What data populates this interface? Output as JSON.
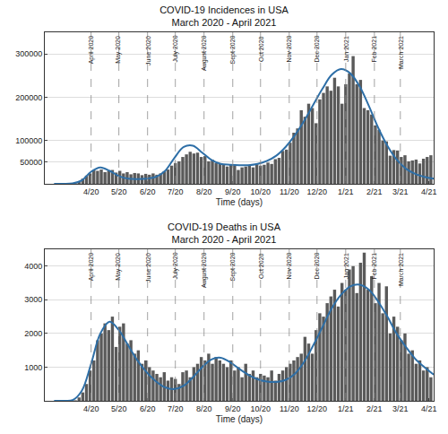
{
  "chart_data": [
    {
      "type": "bar",
      "title": "COVID-19 Incidences in USA",
      "subtitle": "March 2020 - April 2021",
      "x_label": "Time (days)",
      "xlim": [
        20,
        440
      ],
      "xticks": [
        {
          "value": 70,
          "label": "4/20"
        },
        {
          "value": 100,
          "label": "5/20"
        },
        {
          "value": 131,
          "label": "6/20"
        },
        {
          "value": 161,
          "label": "7/20"
        },
        {
          "value": 192,
          "label": "8/20"
        },
        {
          "value": 223,
          "label": "9/20"
        },
        {
          "value": 253,
          "label": "10/20"
        },
        {
          "value": 284,
          "label": "11/20"
        },
        {
          "value": 314,
          "label": "12/20"
        },
        {
          "value": 345,
          "label": "1/21"
        },
        {
          "value": 376,
          "label": "2/21"
        },
        {
          "value": 404,
          "label": "3/21"
        },
        {
          "value": 435,
          "label": "4/21"
        }
      ],
      "ylim": [
        0,
        350000
      ],
      "yticks": [
        50000,
        100000,
        200000,
        300000
      ],
      "grid": true,
      "annotations": [
        {
          "x": 70,
          "text": "April 2020"
        },
        {
          "x": 100,
          "text": "May 2020"
        },
        {
          "x": 131,
          "text": "June 2020"
        },
        {
          "x": 161,
          "text": "July 2020"
        },
        {
          "x": 192,
          "text": "August 2020"
        },
        {
          "x": 223,
          "text": "Sept 2020"
        },
        {
          "x": 253,
          "text": "Oct 2020"
        },
        {
          "x": 284,
          "text": "Nov 2020"
        },
        {
          "x": 314,
          "text": "Dec 2020"
        },
        {
          "x": 345,
          "text": "Jan 2021"
        },
        {
          "x": 376,
          "text": "Feb 2021"
        },
        {
          "x": 404,
          "text": "March 2021"
        }
      ],
      "series": [
        {
          "type": "bar",
          "color": "#5a5a5a",
          "x": [
            41,
            45,
            49,
            53,
            57,
            61,
            65,
            69,
            73,
            77,
            81,
            85,
            89,
            93,
            97,
            101,
            105,
            109,
            113,
            117,
            121,
            125,
            129,
            133,
            137,
            141,
            145,
            149,
            153,
            157,
            161,
            165,
            169,
            173,
            177,
            181,
            185,
            189,
            193,
            197,
            201,
            205,
            209,
            213,
            217,
            221,
            225,
            229,
            233,
            237,
            241,
            245,
            249,
            253,
            257,
            261,
            265,
            269,
            273,
            277,
            281,
            285,
            289,
            293,
            297,
            301,
            305,
            309,
            313,
            317,
            321,
            325,
            329,
            333,
            337,
            341,
            345,
            349,
            353,
            357,
            361,
            365,
            369,
            373,
            377,
            381,
            385,
            389,
            393,
            397,
            401,
            405,
            409,
            413,
            417,
            421,
            425,
            429,
            433,
            437
          ],
          "values": [
            0,
            50,
            300,
            1500,
            5000,
            12000,
            19000,
            24000,
            32000,
            30000,
            33000,
            27000,
            30000,
            32000,
            26000,
            30000,
            24000,
            27000,
            22000,
            25000,
            24000,
            20000,
            23000,
            21000,
            24000,
            21000,
            24000,
            29000,
            33000,
            42000,
            48000,
            52000,
            62000,
            68000,
            74000,
            70000,
            72000,
            62000,
            64000,
            52000,
            56000,
            48000,
            46000,
            44000,
            40000,
            45000,
            42000,
            32000,
            38000,
            40000,
            44000,
            38000,
            45000,
            42000,
            44000,
            49000,
            46000,
            57000,
            60000,
            76000,
            79000,
            95000,
            118000,
            128000,
            170000,
            155000,
            185000,
            175000,
            140000,
            195000,
            210000,
            225000,
            215000,
            245000,
            225000,
            185000,
            230000,
            255000,
            295000,
            230000,
            240000,
            175000,
            170000,
            160000,
            135000,
            125000,
            100000,
            98000,
            65000,
            78000,
            77000,
            62000,
            66000,
            52000,
            54000,
            56000,
            47000,
            58000,
            62000,
            66000
          ]
        },
        {
          "type": "line",
          "color": "#2e6fa7",
          "x": [
            30,
            40,
            50,
            60,
            70,
            80,
            90,
            100,
            110,
            120,
            130,
            140,
            150,
            160,
            170,
            180,
            190,
            200,
            210,
            220,
            230,
            240,
            250,
            260,
            270,
            280,
            290,
            300,
            310,
            320,
            330,
            340,
            350,
            360,
            370,
            380,
            390,
            400,
            410,
            420,
            430,
            440
          ],
          "values": [
            0,
            0,
            1000,
            8000,
            28000,
            38000,
            30000,
            18000,
            12000,
            11000,
            12000,
            16000,
            30000,
            60000,
            85000,
            88000,
            72000,
            55000,
            46000,
            44000,
            43000,
            43000,
            46000,
            53000,
            65000,
            85000,
            112000,
            145000,
            183000,
            220000,
            252000,
            265000,
            255000,
            225000,
            180000,
            130000,
            88000,
            56000,
            35000,
            23000,
            16000,
            12000
          ]
        }
      ]
    },
    {
      "type": "bar",
      "title": "COVID-19 Deaths in USA",
      "subtitle": "March 2020 - April 2021",
      "x_label": "Time (days)",
      "xlim": [
        20,
        440
      ],
      "xticks": [
        {
          "value": 70,
          "label": "4/20"
        },
        {
          "value": 100,
          "label": "5/20"
        },
        {
          "value": 131,
          "label": "6/20"
        },
        {
          "value": 161,
          "label": "7/20"
        },
        {
          "value": 192,
          "label": "8/20"
        },
        {
          "value": 223,
          "label": "9/20"
        },
        {
          "value": 253,
          "label": "10/20"
        },
        {
          "value": 284,
          "label": "11/20"
        },
        {
          "value": 314,
          "label": "12/20"
        },
        {
          "value": 345,
          "label": "1/21"
        },
        {
          "value": 376,
          "label": "2/21"
        },
        {
          "value": 404,
          "label": "3/21"
        },
        {
          "value": 435,
          "label": "4/21"
        }
      ],
      "ylim": [
        0,
        4500
      ],
      "yticks": [
        1000,
        2000,
        3000,
        4000
      ],
      "grid": true,
      "annotations": [
        {
          "x": 70,
          "text": "April 2020"
        },
        {
          "x": 100,
          "text": "May 2020"
        },
        {
          "x": 131,
          "text": "June 2020"
        },
        {
          "x": 161,
          "text": "July 2020"
        },
        {
          "x": 192,
          "text": "August 2020"
        },
        {
          "x": 223,
          "text": "Sept 2020"
        },
        {
          "x": 253,
          "text": "Oct 2020"
        },
        {
          "x": 284,
          "text": "Nov 2020"
        },
        {
          "x": 314,
          "text": "Dec 2020"
        },
        {
          "x": 345,
          "text": "Jan 2021"
        },
        {
          "x": 376,
          "text": "Feb 2021"
        },
        {
          "x": 404,
          "text": "March 2021"
        }
      ],
      "series": [
        {
          "type": "bar",
          "color": "#5a5a5a",
          "x": [
            41,
            45,
            49,
            53,
            57,
            61,
            65,
            69,
            73,
            77,
            81,
            85,
            89,
            93,
            97,
            101,
            105,
            109,
            113,
            117,
            121,
            125,
            129,
            133,
            137,
            141,
            145,
            149,
            153,
            157,
            161,
            165,
            169,
            173,
            177,
            181,
            185,
            189,
            193,
            197,
            201,
            205,
            209,
            213,
            217,
            221,
            225,
            229,
            233,
            237,
            241,
            245,
            249,
            253,
            257,
            261,
            265,
            269,
            273,
            277,
            281,
            285,
            289,
            293,
            297,
            301,
            305,
            309,
            313,
            317,
            321,
            325,
            329,
            333,
            337,
            341,
            345,
            349,
            353,
            357,
            361,
            365,
            369,
            373,
            377,
            381,
            385,
            389,
            393,
            397,
            401,
            405,
            409,
            413,
            417,
            421,
            425,
            429,
            433,
            437
          ],
          "values": [
            0,
            2,
            10,
            15,
            100,
            250,
            500,
            900,
            1200,
            1800,
            2000,
            2300,
            2100,
            2500,
            1600,
            2200,
            2300,
            1700,
            1800,
            1400,
            1500,
            1100,
            1200,
            1000,
            900,
            800,
            700,
            850,
            600,
            700,
            650,
            500,
            850,
            900,
            700,
            1000,
            1100,
            1300,
            1200,
            1400,
            1100,
            1300,
            1200,
            1100,
            1000,
            1200,
            900,
            1000,
            700,
            1100,
            800,
            900,
            700,
            800,
            750,
            700,
            900,
            600,
            800,
            900,
            1000,
            1100,
            1200,
            1300,
            1400,
            1900,
            1700,
            1400,
            2100,
            2600,
            2500,
            2900,
            3100,
            3300,
            2800,
            3500,
            3300,
            3900,
            4000,
            3200,
            4100,
            4400,
            3300,
            3700,
            2900,
            3500,
            2600,
            3400,
            2000,
            2500,
            2200,
            1800,
            2000,
            1400,
            1500,
            1100,
            1200,
            900,
            1000,
            700
          ]
        },
        {
          "type": "line",
          "color": "#2e6fa7",
          "x": [
            30,
            40,
            50,
            60,
            70,
            80,
            90,
            100,
            110,
            120,
            130,
            140,
            150,
            160,
            170,
            180,
            190,
            200,
            210,
            220,
            230,
            240,
            250,
            260,
            270,
            280,
            290,
            300,
            310,
            320,
            330,
            340,
            350,
            360,
            370,
            380,
            390,
            400,
            410,
            420,
            430,
            440
          ],
          "values": [
            0,
            0,
            20,
            300,
            1100,
            2000,
            2350,
            2100,
            1650,
            1200,
            850,
            580,
            400,
            350,
            450,
            700,
            1000,
            1230,
            1280,
            1150,
            950,
            770,
            640,
            570,
            560,
            620,
            800,
            1150,
            1650,
            2200,
            2750,
            3150,
            3400,
            3450,
            3300,
            2950,
            2500,
            2000,
            1600,
            1250,
            1000,
            780
          ]
        }
      ]
    }
  ]
}
